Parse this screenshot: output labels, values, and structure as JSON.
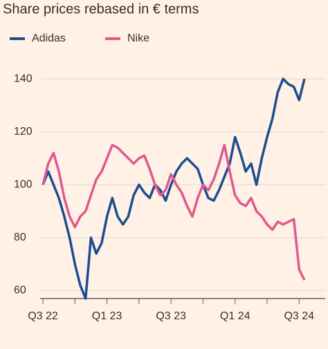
{
  "chart_data": {
    "type": "line",
    "title": "Share prices rebased in € terms",
    "categories": [
      "Q3 22",
      null,
      null,
      null,
      null,
      null,
      null,
      null,
      null,
      null,
      null,
      null,
      "Q1 23",
      null,
      null,
      null,
      null,
      null,
      null,
      null,
      null,
      null,
      null,
      null,
      "Q3 23",
      null,
      null,
      null,
      null,
      null,
      null,
      null,
      null,
      null,
      null,
      null,
      "Q1 24",
      null,
      null,
      null,
      null,
      null,
      null,
      null,
      null,
      null,
      null,
      null,
      "Q3 24",
      null
    ],
    "series": [
      {
        "name": "Adidas",
        "color": "#1a4e8f",
        "values": [
          100,
          105,
          100,
          95,
          88,
          80,
          70,
          62,
          57,
          80,
          74,
          78,
          88,
          95,
          88,
          85,
          88,
          96,
          100,
          97,
          95,
          100,
          98,
          94,
          100,
          105,
          108,
          110,
          108,
          106,
          100,
          95,
          94,
          98,
          103,
          108,
          118,
          112,
          105,
          108,
          100,
          110,
          118,
          125,
          135,
          140,
          138,
          137,
          132,
          140
        ]
      },
      {
        "name": "Nike",
        "color": "#e0588e",
        "values": [
          100,
          108,
          112,
          105,
          95,
          88,
          84,
          88,
          90,
          96,
          102,
          105,
          110,
          115,
          114,
          112,
          110,
          108,
          110,
          111,
          106,
          100,
          96,
          98,
          104,
          100,
          97,
          92,
          88,
          95,
          100,
          98,
          102,
          108,
          115,
          105,
          96,
          93,
          92,
          95,
          90,
          88,
          85,
          83,
          86,
          85,
          86,
          87,
          68,
          64
        ]
      }
    ],
    "ylim": [
      57,
      145
    ],
    "yticks": [
      60,
      80,
      100,
      120,
      140
    ],
    "grid": true
  }
}
